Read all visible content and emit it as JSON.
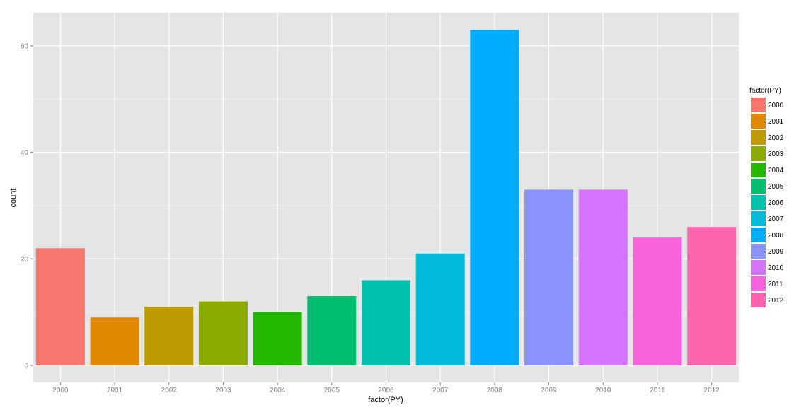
{
  "chart_data": {
    "type": "bar",
    "categories": [
      "2000",
      "2001",
      "2002",
      "2003",
      "2004",
      "2005",
      "2006",
      "2007",
      "2008",
      "2009",
      "2010",
      "2011",
      "2012"
    ],
    "values": [
      22,
      9,
      11,
      12,
      10,
      13,
      16,
      21,
      63,
      33,
      33,
      24,
      26
    ],
    "colors": [
      "#F8766D",
      "#E18A00",
      "#BE9C00",
      "#8CAB00",
      "#24B700",
      "#00BE70",
      "#00C1AB",
      "#00BBDA",
      "#00ACFC",
      "#8B93FF",
      "#D575FE",
      "#F962DD",
      "#FF65AC"
    ],
    "xlabel": "factor(PY)",
    "ylabel": "count",
    "ylim": [
      0,
      66
    ],
    "yticks": [
      0,
      20,
      40,
      60
    ],
    "ytick_labels": [
      "0",
      "20",
      "40",
      "60"
    ],
    "legend": {
      "title": "factor(PY)",
      "placement": "right",
      "entries": [
        "2000",
        "2001",
        "2002",
        "2003",
        "2004",
        "2005",
        "2006",
        "2007",
        "2008",
        "2009",
        "2010",
        "2011",
        "2012"
      ]
    },
    "panel_background": "#E5E5E5",
    "grid": true
  }
}
